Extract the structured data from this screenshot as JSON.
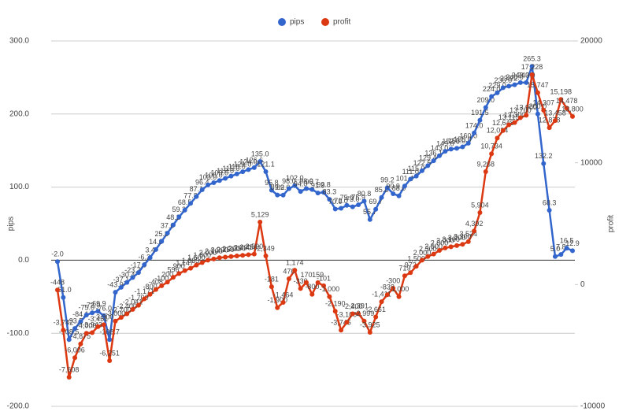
{
  "chart_data": {
    "type": "line",
    "ylabel": "pips",
    "y2label": "profit",
    "ylim": [
      -200,
      300
    ],
    "yticks": [
      {
        "value": -200,
        "label": "-200.0"
      },
      {
        "value": -100,
        "label": "-100.0"
      },
      {
        "value": 0,
        "label": "0.0"
      },
      {
        "value": 100,
        "label": "100.0"
      },
      {
        "value": 200,
        "label": "200.0"
      },
      {
        "value": 300,
        "label": "300.0"
      }
    ],
    "y2lim": [
      -10000,
      20000
    ],
    "y2ticks": [
      -10000,
      0,
      10000,
      20000
    ],
    "grid": true,
    "legend": "top",
    "series": [
      {
        "name": "pips",
        "color": "#3366cc",
        "axis": "y",
        "values": [
          -2.0,
          -51.0,
          -108.5,
          -93.5,
          -84.1,
          -75.0,
          -72.0,
          -69.9,
          -76.0,
          -108.7,
          -43.9,
          -37.1,
          -30.4,
          -23.7,
          -17.0,
          -6.2,
          3.4,
          14.6,
          25.8,
          37.0,
          48.2,
          59.2,
          68.5,
          77.8,
          87.1,
          96.4,
          103.0,
          106.0,
          109.0,
          112.0,
          115.0,
          118.0,
          121.0,
          124.0,
          126.6,
          135.0,
          121.1,
          95.8,
          89.2,
          89.0,
          98.0,
          102.0,
          94.0,
          98.0,
          96.7,
          91.9,
          92.8,
          83.3,
          70.0,
          71.0,
          75.0,
          73.0,
          75.9,
          80.8,
          55.7,
          69.7,
          85.8,
          99.2,
          90.9,
          88.0,
          101.4,
          111.0,
          115.0,
          122.5,
          129.4,
          136.1,
          143.0,
          149.0,
          152.0,
          153.0,
          155.0,
          160.0,
          174.0,
          191.5,
          209.0,
          224.0,
          229.0,
          236.0,
          238.2,
          240.0,
          243.0,
          243.0,
          265.3,
          200.0,
          132.2,
          68.3,
          5.0,
          7.8,
          16.5,
          12.9
        ],
        "value_labels": [
          "-2.0",
          "-51.0",
          "-108.5",
          "-93.5",
          "-84.1",
          "-75.0",
          "-72.0",
          "-69.9",
          "-76.0",
          "-108.7",
          "-43.9",
          "-37.1",
          "-30.4",
          "-23.7",
          "-17.0",
          "-6.2",
          "3.4",
          "14.6",
          "25.8",
          "37.0",
          "48.2",
          "59.2",
          "68.5",
          "77.8",
          "87.1",
          "96.4",
          "103.0",
          "106.0",
          "109.0",
          "112.0",
          "115.0",
          "118.0",
          "121.0",
          "124.0",
          "126.6",
          "135.0",
          "121.1",
          "95.8",
          "89.2",
          "89.0",
          "98.0",
          "102.0",
          "94.0",
          "98.0",
          "96.7",
          "91.9",
          "92.8",
          "83.3",
          "70.0",
          "71.0",
          "75.0",
          "73.0",
          "75.9",
          "80.8",
          "55.7",
          "69.7",
          "85.8",
          "99.2",
          "90.9",
          "88.0",
          "101.4",
          "111.0",
          "115.0",
          "122.5",
          "129.4",
          "136.1",
          "143.0",
          "149.0",
          "152.0",
          "153.0",
          "155.0",
          "160.0",
          "174.0",
          "191.5",
          "209.0",
          "224.0",
          "229.0",
          "236.0",
          "238.2",
          "240.0",
          "243.0",
          "243.0",
          "265.3",
          "200.0",
          "132.2",
          "68.3",
          "5.0",
          "7.8",
          "16.5",
          "12.9"
        ]
      },
      {
        "name": "profit",
        "color": "#dc3912",
        "axis": "y2",
        "values": [
          -448,
          -3742,
          -7608,
          -6006,
          -4875,
          -4000,
          -3943,
          -3451,
          -3300,
          -6251,
          -3000,
          -2700,
          -2400,
          -2041,
          -1700,
          -1171,
          -800,
          -408,
          -100,
          200,
          596,
          900,
          1147,
          1335,
          1600,
          1800,
          2000,
          2100,
          2200,
          2250,
          2300,
          2350,
          2400,
          2450,
          2500,
          5129,
          2349,
          -181,
          -1900,
          -1464,
          476,
          1174,
          -330,
          170,
          -800,
          159,
          -101,
          -1000,
          -2190,
          -3745,
          -3100,
          -2400,
          -2391,
          -2999,
          -3925,
          -2661,
          -1411,
          -838,
          -300,
          -1000,
          719,
          972,
          1500,
          2000,
          2300,
          2500,
          2800,
          3000,
          3100,
          3200,
          3300,
          3524,
          4392,
          5904,
          9268,
          10734,
          12024,
          12648,
          13115,
          13300,
          13700,
          13900,
          17228,
          15747,
          14307,
          12878,
          13458,
          15198,
          14478,
          13800
        ],
        "value_labels": [
          "-448",
          "-3,742",
          "-7,608",
          "-6,006",
          "-4,875",
          "-4,000",
          "-3,943",
          "-3,451",
          "-3,300",
          "-6,251",
          "-3,000",
          "-2,700",
          "-2,400",
          "-2,041",
          "-1,700",
          "-1,171",
          "-800",
          "-408",
          "-100",
          "200",
          "596",
          "900",
          "1,147",
          "1,335",
          "1,600",
          "1,800",
          "2,000",
          "2,100",
          "2,200",
          "2,250",
          "2,300",
          "2,350",
          "2,400",
          "2,450",
          "2,500",
          "5,129",
          "2,349",
          "-181",
          "-1,900",
          "-1,464",
          "476",
          "1,174",
          "-330",
          "170",
          "-800",
          "159",
          "-101",
          "-1,000",
          "-2,190",
          "-3,745",
          "-3,100",
          "-2,400",
          "-2,391",
          "-2,999",
          "-3,925",
          "-2,661",
          "-1,411",
          "-838",
          "-300",
          "-1,000",
          "719",
          "972",
          "1,500",
          "2,000",
          "2,300",
          "2,500",
          "2,800",
          "3,000",
          "3,100",
          "3,200",
          "3,300",
          "3,524",
          "4,392",
          "5,904",
          "9,268",
          "10,734",
          "12,024",
          "12,648",
          "13,115",
          "13,300",
          "13,700",
          "13,900",
          "17,228",
          "15,747",
          "14,307",
          "12,878",
          "13,458",
          "15,198",
          "14,478",
          "13,800"
        ]
      }
    ]
  }
}
